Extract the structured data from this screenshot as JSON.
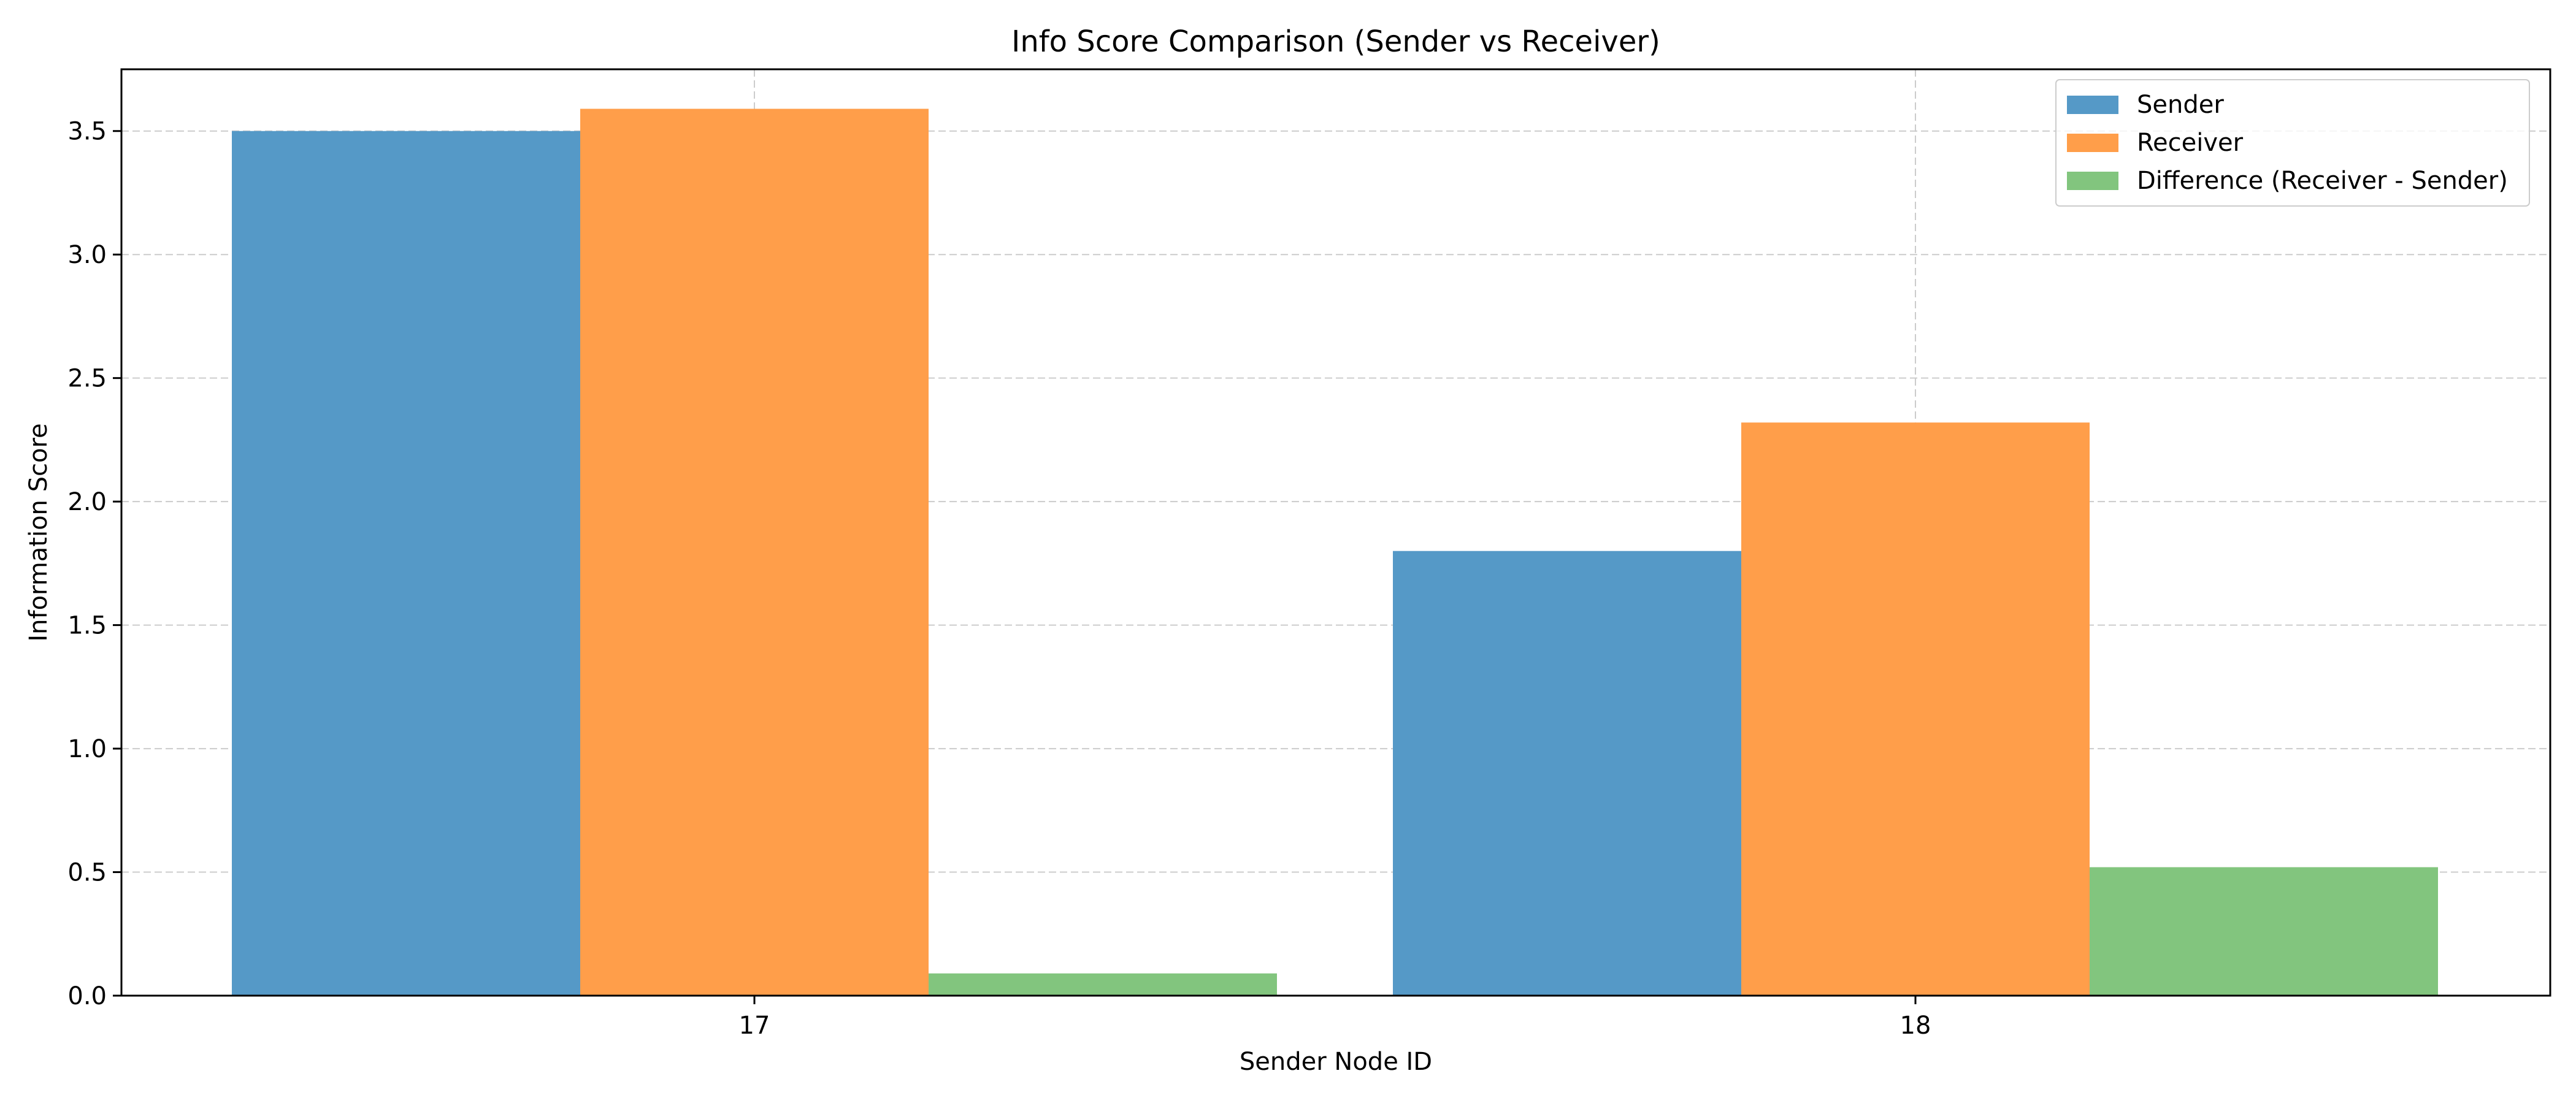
{
  "chart_data": {
    "type": "bar",
    "title": "Info Score Comparison (Sender vs Receiver)",
    "xlabel": "Sender Node ID",
    "ylabel": "Information Score",
    "categories": [
      "17",
      "18"
    ],
    "series": [
      {
        "name": "Sender",
        "color": "#5599c7",
        "values": [
          3.5,
          1.8
        ]
      },
      {
        "name": "Receiver",
        "color": "#ff9e4a",
        "values": [
          3.59,
          2.32
        ]
      },
      {
        "name": "Difference (Receiver - Sender)",
        "color": "#82c57e",
        "values": [
          0.09,
          0.52
        ]
      }
    ],
    "ylim": [
      0,
      3.75
    ],
    "yticks": [
      "0.0",
      "0.5",
      "1.0",
      "1.5",
      "2.0",
      "2.5",
      "3.0",
      "3.5"
    ],
    "grid": true,
    "legend_position": "top-right"
  }
}
